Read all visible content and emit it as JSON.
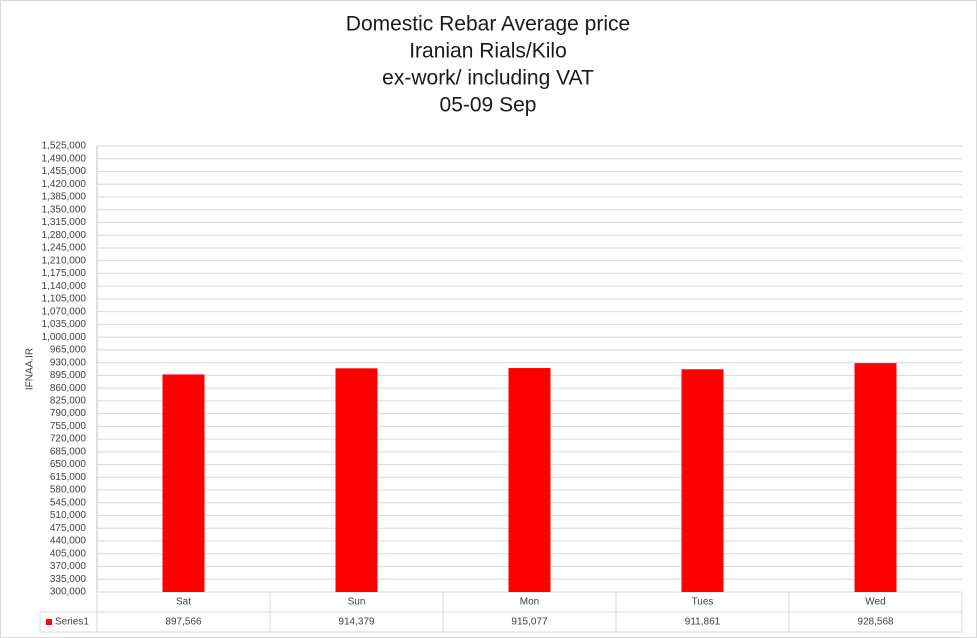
{
  "chart_data": {
    "type": "bar",
    "title": [
      "Domestic Rebar Average price",
      "Iranian Rials/Kilo",
      "ex-work/ including VAT",
      "05-09 Sep"
    ],
    "y_label": "IFNAA.IR",
    "categories": [
      "Sat",
      "Sun",
      "Mon",
      "Tues",
      "Wed"
    ],
    "series": [
      {
        "name": "Series1",
        "color": "#ff0000",
        "values": [
          897566,
          914379,
          915077,
          911861,
          928568
        ],
        "value_labels": [
          "897,566",
          "914,379",
          "915,077",
          "911,861",
          "928,568"
        ]
      }
    ],
    "ylim": [
      300000,
      1525000
    ],
    "yticks": [
      {
        "value": 300000,
        "label": "300,000"
      },
      {
        "value": 335000,
        "label": "335,000"
      },
      {
        "value": 370000,
        "label": "370,000"
      },
      {
        "value": 405000,
        "label": "405,000"
      },
      {
        "value": 440000,
        "label": "440,000"
      },
      {
        "value": 475000,
        "label": "475,000"
      },
      {
        "value": 510000,
        "label": "510,000"
      },
      {
        "value": 545000,
        "label": "545,000"
      },
      {
        "value": 580000,
        "label": "580,000"
      },
      {
        "value": 615000,
        "label": "615,000"
      },
      {
        "value": 650000,
        "label": "650,000"
      },
      {
        "value": 685000,
        "label": "685,000"
      },
      {
        "value": 720000,
        "label": "720,000"
      },
      {
        "value": 755000,
        "label": "755,000"
      },
      {
        "value": 790000,
        "label": "790,000"
      },
      {
        "value": 825000,
        "label": "825,000"
      },
      {
        "value": 860000,
        "label": "860,000"
      },
      {
        "value": 895000,
        "label": "895,000"
      },
      {
        "value": 930000,
        "label": "930,000"
      },
      {
        "value": 965000,
        "label": "965,000"
      },
      {
        "value": 1000000,
        "label": "1,000,000"
      },
      {
        "value": 1035000,
        "label": "1,035,000"
      },
      {
        "value": 1070000,
        "label": "1,070,000"
      },
      {
        "value": 1105000,
        "label": "1,105,000"
      },
      {
        "value": 1140000,
        "label": "1,140,000"
      },
      {
        "value": 1175000,
        "label": "1,175,000"
      },
      {
        "value": 1210000,
        "label": "1,210,000"
      },
      {
        "value": 1245000,
        "label": "1,245,000"
      },
      {
        "value": 1280000,
        "label": "1,280,000"
      },
      {
        "value": 1315000,
        "label": "1,315,000"
      },
      {
        "value": 1350000,
        "label": "1,350,000"
      },
      {
        "value": 1385000,
        "label": "1,385,000"
      },
      {
        "value": 1420000,
        "label": "1,420,000"
      },
      {
        "value": 1455000,
        "label": "1,455,000"
      },
      {
        "value": 1490000,
        "label": "1,490,000"
      },
      {
        "value": 1525000,
        "label": "1,525,000"
      }
    ],
    "grid": true
  }
}
